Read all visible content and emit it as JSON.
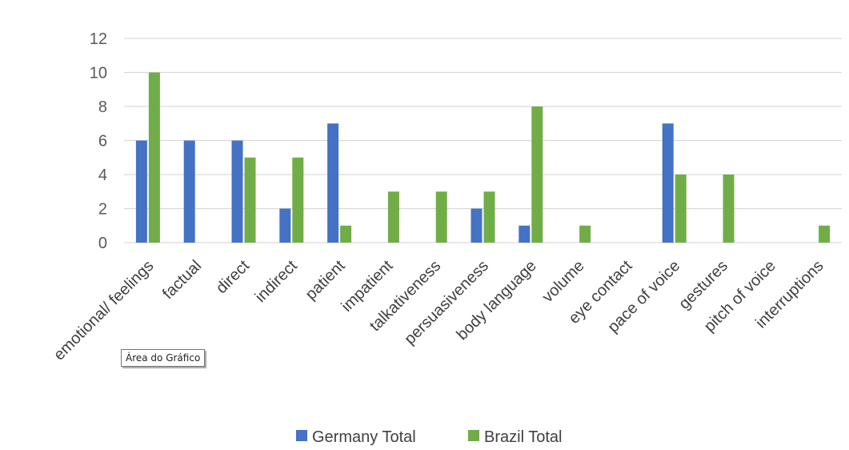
{
  "chart_data": {
    "type": "bar",
    "categories": [
      "emotional/ feelings",
      "factual",
      "direct",
      "indirect",
      "patient",
      "impatient",
      "talkativeness",
      "persuasiveness",
      "body language",
      "volume",
      "eye contact",
      "pace of voice",
      "gestures",
      "pitch of voice",
      "interruptions"
    ],
    "series": [
      {
        "name": "Germany Total",
        "color": "#4472C4",
        "values": [
          6,
          6,
          6,
          2,
          7,
          0,
          0,
          2,
          1,
          0,
          0,
          7,
          0,
          0,
          0
        ]
      },
      {
        "name": "Brazil Total",
        "color": "#70AD47",
        "values": [
          10,
          0,
          5,
          5,
          1,
          3,
          3,
          3,
          8,
          1,
          0,
          4,
          4,
          0,
          1
        ]
      }
    ],
    "ylim": [
      0,
      12
    ],
    "yticks": [
      "0",
      "2",
      "4",
      "6",
      "8",
      "10",
      "12"
    ],
    "grid": true,
    "legend_position": "bottom"
  },
  "tooltip": {
    "text": "Área do Gráfico"
  }
}
